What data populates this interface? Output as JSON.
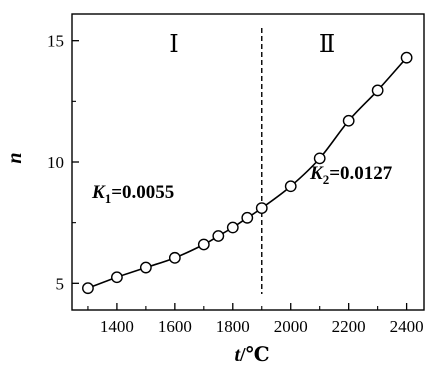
{
  "chart_data": {
    "type": "line",
    "title": "",
    "xlabel": {
      "var": "t",
      "unit": "/℃"
    },
    "ylabel": "n",
    "xlim": [
      1245,
      2460
    ],
    "ylim": [
      3.9,
      16.1
    ],
    "xticks": [
      1400,
      1600,
      1800,
      2000,
      2200,
      2400
    ],
    "yticks": [
      5,
      10,
      15
    ],
    "grid": false,
    "legend": "none",
    "series": [
      {
        "x": [
          1300,
          1400,
          1500,
          1600,
          1700,
          1750,
          1800,
          1850,
          1900,
          2000,
          2100,
          2200,
          2300,
          2400
        ],
        "y": [
          4.8,
          5.25,
          5.65,
          6.05,
          6.6,
          6.95,
          7.3,
          7.7,
          8.1,
          9.0,
          10.15,
          11.7,
          12.95,
          14.3
        ]
      }
    ],
    "divider_x": 1900,
    "regions": [
      "Ⅰ",
      "Ⅱ"
    ],
    "annotations": {
      "k1": {
        "symbol": "K",
        "sub": "1",
        "value": "=0.0055"
      },
      "k2": {
        "symbol": "K",
        "sub": "2",
        "value": "=0.0127"
      }
    }
  }
}
